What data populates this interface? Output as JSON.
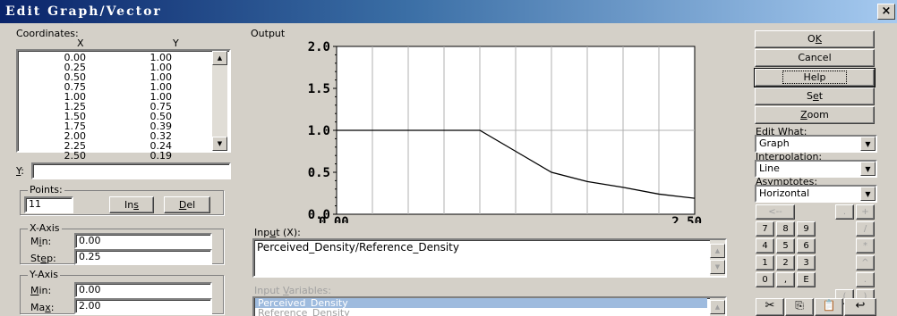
{
  "window": {
    "title": "Edit  Graph/Vector",
    "close": "×"
  },
  "coordinates": {
    "label": "Coordinates:",
    "col_x": "X",
    "col_y": "Y",
    "rows": [
      {
        "x": "0.00",
        "y": "1.00"
      },
      {
        "x": "0.25",
        "y": "1.00"
      },
      {
        "x": "0.50",
        "y": "1.00"
      },
      {
        "x": "0.75",
        "y": "1.00"
      },
      {
        "x": "1.00",
        "y": "1.00"
      },
      {
        "x": "1.25",
        "y": "0.75"
      },
      {
        "x": "1.50",
        "y": "0.50"
      },
      {
        "x": "1.75",
        "y": "0.39"
      },
      {
        "x": "2.00",
        "y": "0.32"
      },
      {
        "x": "2.25",
        "y": "0.24"
      },
      {
        "x": "2.50",
        "y": "0.19"
      }
    ]
  },
  "y_field": {
    "label": "Y:",
    "value": ""
  },
  "points": {
    "label": "Points:",
    "value": "11",
    "ins": "Ins",
    "del": "Del"
  },
  "x_axis": {
    "label": "X-Axis",
    "min_label": "Min:",
    "min_value": "0.00",
    "step_label": "Step:",
    "step_value": "0.25"
  },
  "y_axis": {
    "label": "Y-Axis",
    "min_label": "Min:",
    "min_value": "0.00",
    "max_label": "Max:",
    "max_value": "2.00"
  },
  "output": {
    "label": "Output"
  },
  "chart_data": {
    "type": "line",
    "title": "",
    "x": [
      0.0,
      0.25,
      0.5,
      0.75,
      1.0,
      1.25,
      1.5,
      1.75,
      2.0,
      2.25,
      2.5
    ],
    "series": [
      {
        "values": [
          1.0,
          1.0,
          1.0,
          1.0,
          1.0,
          0.75,
          0.5,
          0.39,
          0.32,
          0.24,
          0.19
        ]
      }
    ],
    "xlim": [
      0,
      2.5
    ],
    "ylim": [
      0,
      2.0
    ],
    "y_ticks": [
      "2.0",
      "1.5",
      "1.0",
      "0.5",
      "0.0"
    ],
    "x_tick_labels": [
      "0.00",
      "2.50"
    ],
    "grid": true
  },
  "input": {
    "label": "Input (X):",
    "value": "Perceived_Density/Reference_Density"
  },
  "input_variables": {
    "label": "Input Variables:",
    "items": [
      "Perceived_Density",
      "Reference_Density"
    ]
  },
  "buttons": {
    "ok": "OK",
    "cancel": "Cancel",
    "help": "Help",
    "set": "Set",
    "zoom": "Zoom"
  },
  "edit_what": {
    "label": "Edit What:",
    "value": "Graph"
  },
  "interpolation": {
    "label": "Interpolation:",
    "value": "Line"
  },
  "asymptotes": {
    "label": "Asymptotes:",
    "value": "Horizontal"
  },
  "keypad": {
    "k_back": "<--",
    "k_dot0": ".",
    "k_plus": "+",
    "k7": "7",
    "k8": "8",
    "k9": "9",
    "k_div": "/",
    "k4": "4",
    "k5": "5",
    "k6": "6",
    "k_mul": "*",
    "k1": "1",
    "k2": "2",
    "k3": "3",
    "k_pow": "^",
    "k0": "0",
    "k_comma": ",",
    "kE": "E",
    "k_dot": ".",
    "k_lp": "(",
    "k_rp": ")"
  }
}
